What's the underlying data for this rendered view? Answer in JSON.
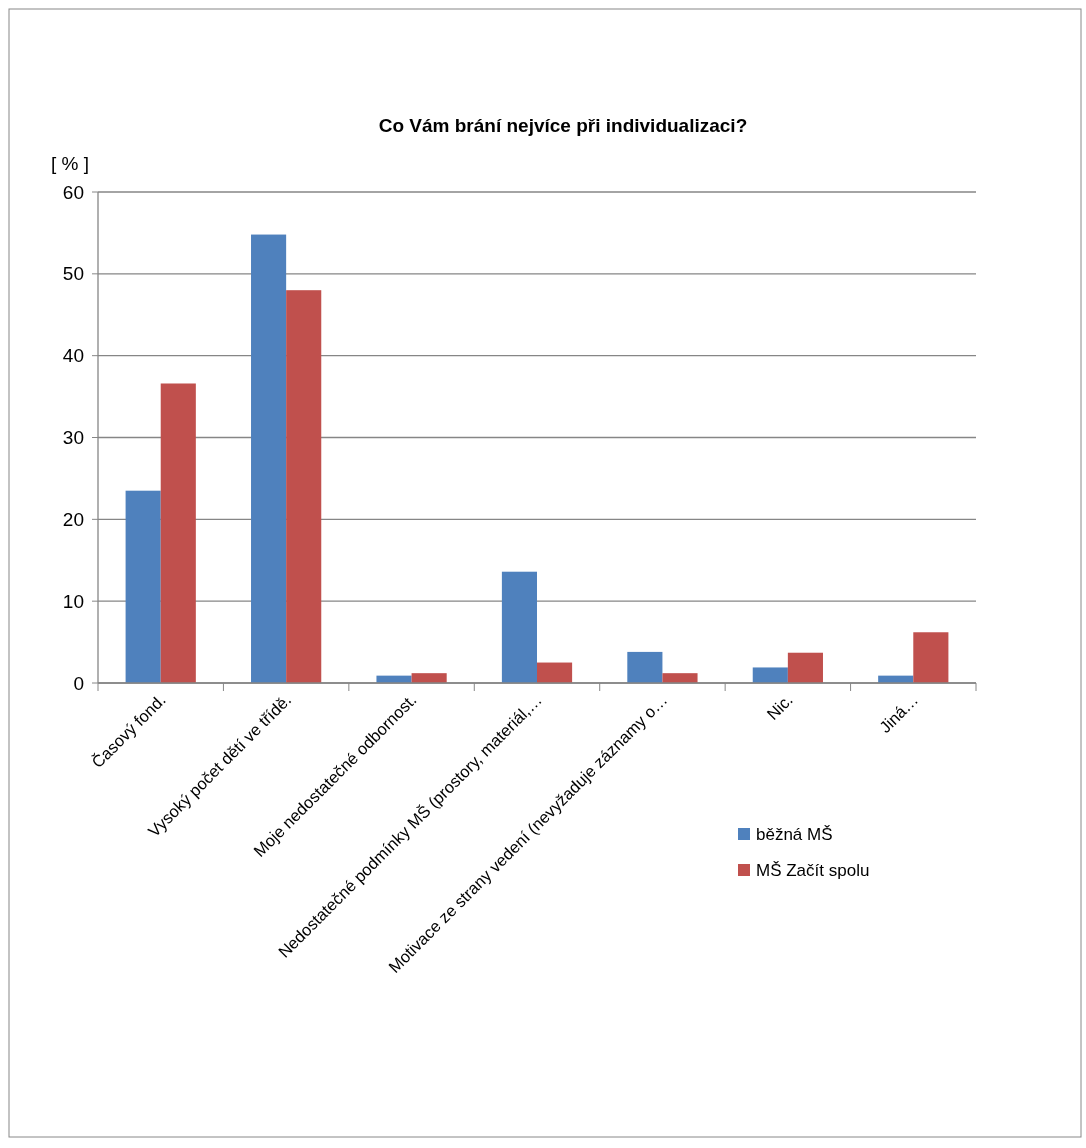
{
  "chart_data": {
    "type": "bar",
    "title": "Co Vám brání nejvíce při individualizaci?",
    "ylabel": "[ % ]",
    "categories": [
      "Časový fond.",
      "Vysoký počet dětí ve třídě.",
      "Moje nedostatečné odbornost.",
      "Nedostatečné podmínky MŠ (prostory, materiál,…",
      "Motivace ze strany vedení (nevyžaduje záznamy o…",
      "Nic.",
      "Jiná…"
    ],
    "series": [
      {
        "name": "běžná MŠ",
        "color": "#4f81bd",
        "values": [
          23.5,
          54.8,
          0.9,
          13.6,
          3.8,
          1.9,
          0.9
        ]
      },
      {
        "name": "MŠ Začít spolu",
        "color": "#c0504d",
        "values": [
          36.6,
          48.0,
          1.2,
          2.5,
          1.2,
          3.7,
          6.2
        ]
      }
    ],
    "ylim": [
      0,
      60
    ],
    "yticks": [
      0,
      10,
      20,
      30,
      40,
      50,
      60
    ],
    "grid": "y",
    "legend": "bottom right"
  }
}
